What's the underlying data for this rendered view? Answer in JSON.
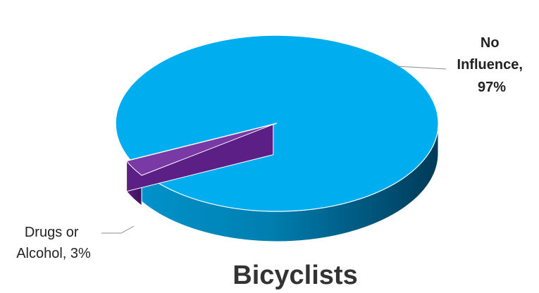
{
  "chart_data": {
    "type": "pie",
    "title": "Bicyclists",
    "slices": [
      {
        "name": "No Influence",
        "value": 97,
        "label_lines": [
          "No",
          "Influence,",
          "97%"
        ],
        "color": "#00AEEF"
      },
      {
        "name": "Drugs or Alcohol",
        "value": 3,
        "label_lines": [
          "Drugs or",
          "Alcohol, 3%"
        ],
        "color": "#6A2C91"
      }
    ],
    "grid": false,
    "legend": "none"
  }
}
